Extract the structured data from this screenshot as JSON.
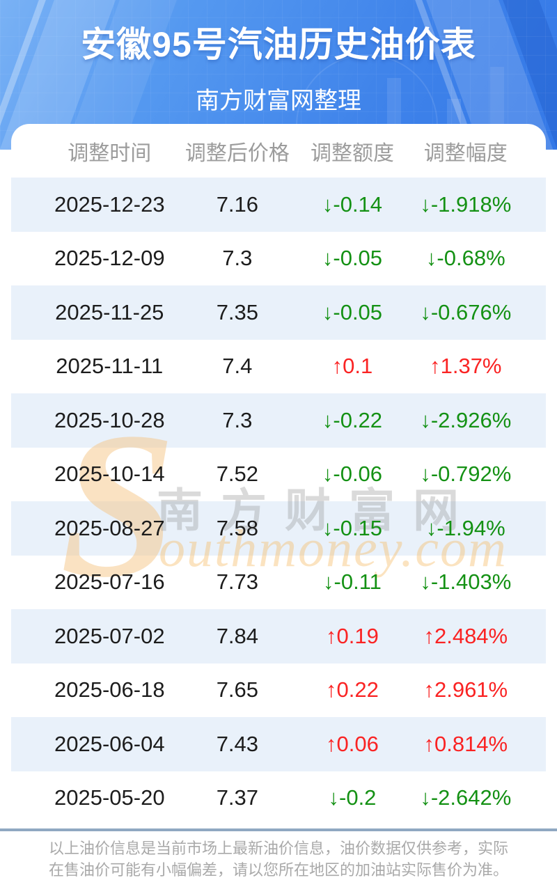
{
  "header": {
    "title": "安徽95号汽油历史油价表",
    "subtitle": "南方财富网整理"
  },
  "table": {
    "columns": [
      "调整时间",
      "调整后价格",
      "调整额度",
      "调整幅度"
    ],
    "rows": [
      {
        "date": "2025-12-23",
        "price": "7.16",
        "amount": "↓-0.14",
        "range": "↓-1.918%"
      },
      {
        "date": "2025-12-09",
        "price": "7.3",
        "amount": "↓-0.05",
        "range": "↓-0.68%"
      },
      {
        "date": "2025-11-25",
        "price": "7.35",
        "amount": "↓-0.05",
        "range": "↓-0.676%"
      },
      {
        "date": "2025-11-11",
        "price": "7.4",
        "amount": "↑0.1",
        "range": "↑1.37%"
      },
      {
        "date": "2025-10-28",
        "price": "7.3",
        "amount": "↓-0.22",
        "range": "↓-2.926%"
      },
      {
        "date": "2025-10-14",
        "price": "7.52",
        "amount": "↓-0.06",
        "range": "↓-0.792%"
      },
      {
        "date": "2025-08-27",
        "price": "7.58",
        "amount": "↓-0.15",
        "range": "↓-1.94%"
      },
      {
        "date": "2025-07-16",
        "price": "7.73",
        "amount": "↓-0.11",
        "range": "↓-1.403%"
      },
      {
        "date": "2025-07-02",
        "price": "7.84",
        "amount": "↑0.19",
        "range": "↑2.484%"
      },
      {
        "date": "2025-06-18",
        "price": "7.65",
        "amount": "↑0.22",
        "range": "↑2.961%"
      },
      {
        "date": "2025-06-04",
        "price": "7.43",
        "amount": "↑0.06",
        "range": "↑0.814%"
      },
      {
        "date": "2025-05-20",
        "price": "7.37",
        "amount": "↓-0.2",
        "range": "↓-2.642%"
      }
    ]
  },
  "watermark": {
    "initial": "S",
    "cn": "南方财富网",
    "en": "outhmoney.com"
  },
  "footer": {
    "line1": "以上油价信息是当前市场上最新油价信息，油价数据仅供参考，实际",
    "line2": "在售油价可能有小幅偏差，请以您所在地区的加油站实际售价为准。"
  },
  "colors": {
    "header_blue": "#4a8fec",
    "row_alt_blue": "#e9f1fa",
    "up_red": "#fa2323",
    "down_green": "#149114",
    "divider_blue_gray": "#90a8c2"
  }
}
